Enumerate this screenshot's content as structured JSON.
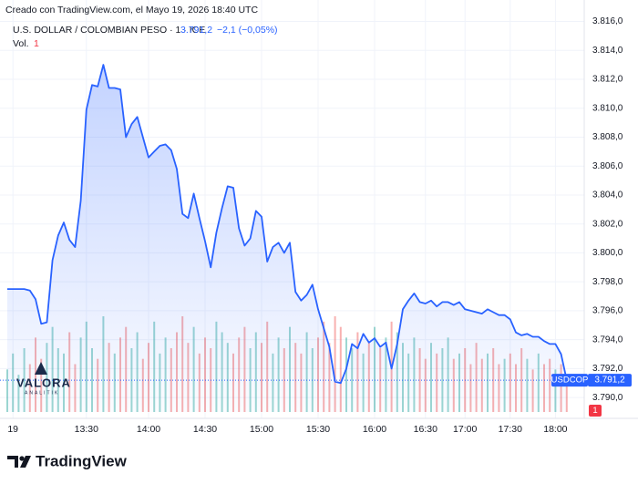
{
  "header": {
    "credit": "Creado con TradingView.com, el Mayo 19, 2026 18:40 UTC",
    "symbol": "U.S. DOLLAR / COLOMBIAN PESO · 1 · ICE",
    "change": "−2,1 (−0,05%)",
    "volume_label": "Vol.",
    "volume_value": "1"
  },
  "chart_data": {
    "type": "area",
    "categories": [
      null,
      "19",
      null,
      null,
      null,
      null,
      null,
      null,
      null,
      null,
      null,
      null,
      null,
      null,
      "13:30",
      null,
      null,
      null,
      null,
      null,
      null,
      null,
      null,
      null,
      null,
      "14:00",
      null,
      null,
      null,
      null,
      null,
      null,
      null,
      null,
      null,
      "14:30",
      null,
      null,
      null,
      null,
      null,
      null,
      null,
      null,
      null,
      "15:00",
      null,
      null,
      null,
      null,
      null,
      null,
      null,
      null,
      null,
      "15:30",
      null,
      null,
      null,
      null,
      null,
      null,
      null,
      null,
      null,
      "16:00",
      null,
      null,
      null,
      null,
      null,
      null,
      null,
      null,
      "16:30",
      null,
      null,
      null,
      null,
      null,
      null,
      "17:00",
      null,
      null,
      null,
      null,
      null,
      null,
      null,
      "17:30",
      null,
      null,
      null,
      null,
      null,
      null,
      null,
      "18:00",
      null,
      null
    ],
    "series": [
      {
        "name": "USDCOP",
        "color": "#2962ff",
        "values": [
          3797.5,
          3797.5,
          3797.5,
          3797.5,
          3797.4,
          3796.8,
          3795.1,
          3795.2,
          3799.5,
          3801.2,
          3802.1,
          3800.9,
          3800.4,
          3803.6,
          3809.9,
          3811.6,
          3811.5,
          3813.0,
          3811.4,
          3811.4,
          3811.3,
          3808.0,
          3808.9,
          3809.4,
          3808.0,
          3806.6,
          3807.0,
          3807.4,
          3807.5,
          3807.1,
          3805.8,
          3802.7,
          3802.4,
          3804.1,
          3802.4,
          3800.8,
          3799.0,
          3801.4,
          3803.1,
          3804.6,
          3804.5,
          3801.7,
          3800.5,
          3801.0,
          3802.9,
          3802.5,
          3799.4,
          3800.4,
          3800.7,
          3800.0,
          3800.7,
          3797.3,
          3796.7,
          3797.1,
          3797.8,
          3796.1,
          3794.8,
          3793.5,
          3791.1,
          3791.0,
          3792.0,
          3793.7,
          3793.4,
          3794.4,
          3793.8,
          3794.1,
          3793.5,
          3793.8,
          3792.0,
          3793.7,
          3796.1,
          3796.7,
          3797.2,
          3796.6,
          3796.5,
          3796.7,
          3796.3,
          3796.6,
          3796.6,
          3796.4,
          3796.6,
          3796.1,
          3796.0,
          3795.9,
          3795.8,
          3796.1,
          3795.9,
          3795.7,
          3795.7,
          3795.4,
          3794.5,
          3794.3,
          3794.4,
          3794.2,
          3794.2,
          3793.9,
          3793.7,
          3793.7,
          3793.0,
          3791.2
        ]
      }
    ],
    "volume": {
      "up_color": "#26a69a",
      "down_color": "#ef5350",
      "values": [
        40,
        55,
        35,
        60,
        45,
        70,
        50,
        65,
        80,
        60,
        55,
        75,
        45,
        70,
        85,
        60,
        50,
        90,
        65,
        55,
        70,
        80,
        60,
        75,
        50,
        65,
        85,
        55,
        70,
        60,
        75,
        90,
        65,
        80,
        55,
        70,
        60,
        85,
        75,
        65,
        55,
        70,
        80,
        60,
        75,
        65,
        85,
        55,
        70,
        60,
        80,
        65,
        55,
        75,
        60,
        70,
        85,
        65,
        90,
        80,
        70,
        60,
        75,
        55,
        65,
        80,
        60,
        70,
        85,
        75,
        65,
        55,
        70,
        60,
        50,
        65,
        55,
        60,
        70,
        50,
        55,
        60,
        45,
        65,
        50,
        55,
        60,
        45,
        50,
        55,
        45,
        60,
        50,
        40,
        55,
        45,
        50,
        40,
        45,
        35
      ]
    },
    "ylim": [
      3789,
      3816.6
    ],
    "yticks": [
      {
        "value": 3790,
        "label": "3.790,0"
      },
      {
        "value": 3792,
        "label": "3.792,0"
      },
      {
        "value": 3794,
        "label": "3.794,0"
      },
      {
        "value": 3796,
        "label": "3.796,0"
      },
      {
        "value": 3798,
        "label": "3.798,0"
      },
      {
        "value": 3800,
        "label": "3.800,0"
      },
      {
        "value": 3802,
        "label": "3.802,0"
      },
      {
        "value": 3804,
        "label": "3.804,0"
      },
      {
        "value": 3806,
        "label": "3.806,0"
      },
      {
        "value": 3808,
        "label": "3.808,0"
      },
      {
        "value": 3810,
        "label": "3.810,0"
      },
      {
        "value": 3812,
        "label": "3.812,0"
      },
      {
        "value": 3814,
        "label": "3.814,0"
      },
      {
        "value": 3816,
        "label": "3.816,0"
      }
    ],
    "last_price": {
      "value": 3791.2,
      "label": "3.791,2"
    },
    "volume_badge": "1",
    "grid": true
  },
  "watermark": {
    "name": "VALORA",
    "sub": "ANALITIK"
  },
  "footer": "TradingView"
}
